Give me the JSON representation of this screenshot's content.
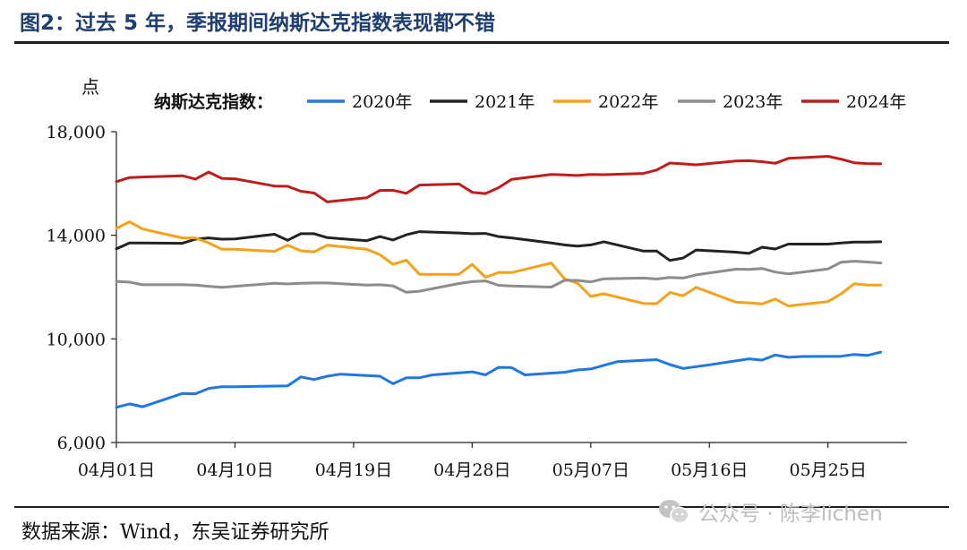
{
  "figure_title": "图2：过去 5 年，季报期间纳斯达克指数表现都不错",
  "source_note": "数据来源：Wind，东吴证券研究所",
  "watermark": "公众号 · 陈李lichen",
  "chart_data": {
    "type": "line",
    "ylabel": "点",
    "legend_title": "纳斯达克指数：",
    "ylim": [
      6000,
      18000
    ],
    "yticks": [
      6000,
      10000,
      14000,
      18000
    ],
    "ytick_labels": [
      "6,000",
      "10,000",
      "14,000",
      "18,000"
    ],
    "xlim": [
      1,
      61
    ],
    "xticks": [
      1,
      10,
      19,
      28,
      37,
      46,
      55
    ],
    "xtick_labels": [
      "04月01日",
      "04月10日",
      "04月19日",
      "04月28日",
      "05月07日",
      "05月16日",
      "05月25日"
    ],
    "legend_position": "top",
    "grid": false,
    "series": [
      {
        "name": "2020年",
        "color": "#1f77e5",
        "x": [
          1,
          2,
          3,
          6,
          7,
          8,
          9,
          10,
          14,
          15,
          16,
          17,
          18,
          21,
          22,
          23,
          24,
          25,
          28,
          29,
          30,
          31,
          32,
          35,
          36,
          37,
          38,
          39,
          42,
          43,
          44,
          45,
          46,
          49,
          50,
          51,
          52,
          53,
          56,
          57,
          58,
          59
        ],
        "y": [
          7360,
          7490,
          7380,
          7890,
          7880,
          8090,
          8150,
          8150,
          8190,
          8530,
          8430,
          8560,
          8640,
          8560,
          8270,
          8500,
          8500,
          8610,
          8730,
          8610,
          8900,
          8890,
          8610,
          8710,
          8800,
          8840,
          8980,
          9120,
          9200,
          9010,
          8860,
          8930,
          9000,
          9230,
          9180,
          9380,
          9290,
          9320,
          9330,
          9400,
          9360,
          9490
        ]
      },
      {
        "name": "2021年",
        "color": "#222222",
        "x": [
          1,
          2,
          3,
          6,
          7,
          8,
          9,
          10,
          13,
          14,
          15,
          16,
          17,
          20,
          21,
          22,
          23,
          24,
          27,
          28,
          29,
          30,
          31,
          34,
          35,
          36,
          37,
          38,
          41,
          42,
          43,
          44,
          45,
          48,
          49,
          50,
          51,
          52,
          55,
          56,
          57,
          58,
          59
        ],
        "y": [
          13480,
          13700,
          13700,
          13690,
          13850,
          13900,
          13850,
          13860,
          14040,
          13810,
          14060,
          14060,
          13910,
          13790,
          13950,
          13820,
          14020,
          14140,
          14090,
          14060,
          14070,
          13950,
          13900,
          13700,
          13630,
          13580,
          13630,
          13750,
          13390,
          13390,
          13030,
          13120,
          13430,
          13350,
          13300,
          13540,
          13470,
          13660,
          13660,
          13700,
          13740,
          13740,
          13750
        ]
      },
      {
        "name": "2022年",
        "color": "#f5a21a",
        "x": [
          1,
          2,
          3,
          6,
          7,
          8,
          9,
          10,
          13,
          14,
          15,
          16,
          17,
          20,
          21,
          22,
          23,
          24,
          27,
          28,
          29,
          30,
          31,
          34,
          35,
          36,
          37,
          38,
          41,
          42,
          43,
          44,
          45,
          48,
          49,
          50,
          51,
          52,
          55,
          56,
          57,
          58,
          59
        ],
        "y": [
          14260,
          14520,
          14240,
          13900,
          13900,
          13710,
          13460,
          13460,
          13380,
          13620,
          13400,
          13360,
          13620,
          13460,
          13250,
          12880,
          13040,
          12490,
          12490,
          12880,
          12380,
          12560,
          12560,
          12930,
          12320,
          12150,
          11640,
          11740,
          11370,
          11360,
          11790,
          11660,
          11990,
          11420,
          11390,
          11350,
          11540,
          11270,
          11440,
          11740,
          12130,
          12080,
          12080
        ]
      },
      {
        "name": "2023年",
        "color": "#8c8c8c",
        "x": [
          1,
          2,
          3,
          6,
          7,
          8,
          9,
          10,
          13,
          14,
          15,
          16,
          17,
          20,
          21,
          22,
          23,
          24,
          27,
          28,
          29,
          30,
          31,
          34,
          35,
          36,
          37,
          38,
          41,
          42,
          43,
          44,
          45,
          48,
          49,
          50,
          51,
          52,
          55,
          56,
          57,
          58,
          59
        ],
        "y": [
          12220,
          12190,
          12090,
          12090,
          12080,
          12030,
          11990,
          12030,
          12150,
          12120,
          12150,
          12160,
          12160,
          12080,
          12090,
          12050,
          11800,
          11840,
          12140,
          12210,
          12240,
          12070,
          12040,
          12000,
          12260,
          12260,
          12200,
          12320,
          12350,
          12310,
          12370,
          12350,
          12470,
          12690,
          12680,
          12720,
          12580,
          12510,
          12700,
          12960,
          13000,
          12970,
          12930
        ]
      },
      {
        "name": "2024年",
        "color": "#c01c1c",
        "x": [
          1,
          2,
          3,
          6,
          7,
          8,
          9,
          10,
          13,
          14,
          15,
          16,
          17,
          20,
          21,
          22,
          23,
          24,
          27,
          28,
          29,
          30,
          31,
          34,
          35,
          36,
          37,
          38,
          41,
          42,
          43,
          44,
          45,
          48,
          49,
          50,
          51,
          52,
          55,
          56,
          57,
          58,
          59
        ],
        "y": [
          16070,
          16230,
          16250,
          16300,
          16170,
          16440,
          16200,
          16180,
          15900,
          15890,
          15700,
          15630,
          15290,
          15450,
          15730,
          15740,
          15620,
          15940,
          15980,
          15660,
          15610,
          15840,
          16160,
          16350,
          16330,
          16310,
          16350,
          16340,
          16390,
          16520,
          16790,
          16760,
          16720,
          16870,
          16880,
          16840,
          16780,
          16970,
          17050,
          16940,
          16800,
          16770,
          16760
        ]
      }
    ]
  }
}
